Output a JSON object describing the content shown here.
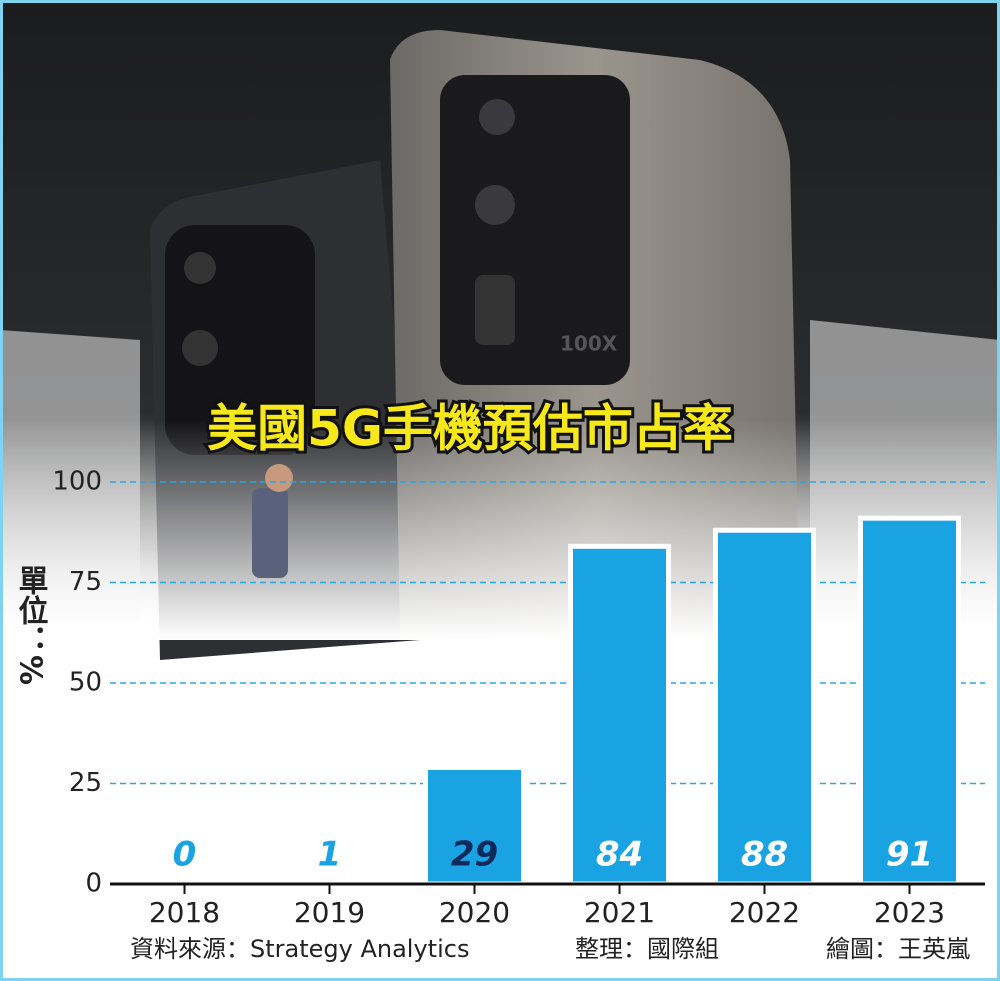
{
  "chart_data": {
    "type": "bar",
    "title": "美國5G手機預估市占率",
    "y_axis_label": "單位：%",
    "categories": [
      "2018",
      "2019",
      "2020",
      "2021",
      "2022",
      "2023"
    ],
    "values": [
      0,
      1,
      29,
      84,
      88,
      91
    ],
    "color": "#1aa3e3",
    "ylim": [
      0,
      100
    ],
    "yticks": [
      0,
      25,
      50,
      75,
      100
    ],
    "grid": true,
    "source": "資料來源：Strategy Analytics",
    "compiled_by": "整理：國際組",
    "illustrated_by": "繪圖：王英嵐"
  }
}
